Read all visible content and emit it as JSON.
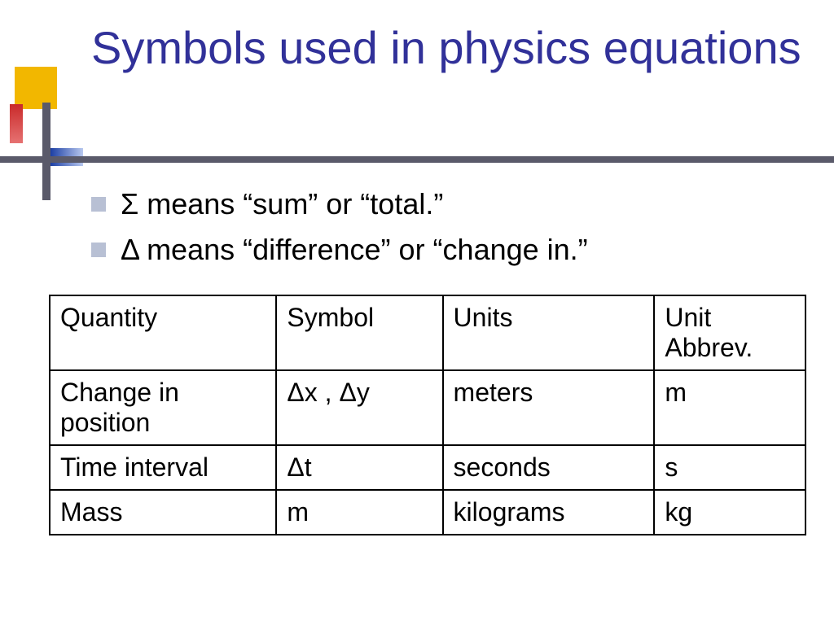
{
  "title": "Symbols used in physics equations",
  "bullets": [
    "Σ means “sum” or “total.”",
    "Δ means “difference” or “change in.”"
  ],
  "table": {
    "type": "table",
    "col_widths_pct": [
      30,
      22,
      28,
      20
    ],
    "columns": [
      "Quantity",
      "Symbol",
      "Units",
      "Unit Abbrev."
    ],
    "rows": [
      [
        "Change in position",
        "Δx , Δy",
        "meters",
        "m"
      ],
      [
        "Time interval",
        "Δt",
        "seconds",
        "s"
      ],
      [
        "Mass",
        "m",
        "kilograms",
        "kg"
      ]
    ],
    "border_color": "#000000",
    "font_size_pt": 24,
    "text_color": "#000000"
  },
  "colors": {
    "title": "#313199",
    "bullet_square": "#b8c0d4",
    "rule": "#5a5a6a",
    "accent_yellow": "#f2b700",
    "accent_red": "#c92a2a",
    "accent_blue": "#1c3fa4",
    "background": "#ffffff"
  },
  "font_family": "Arial"
}
